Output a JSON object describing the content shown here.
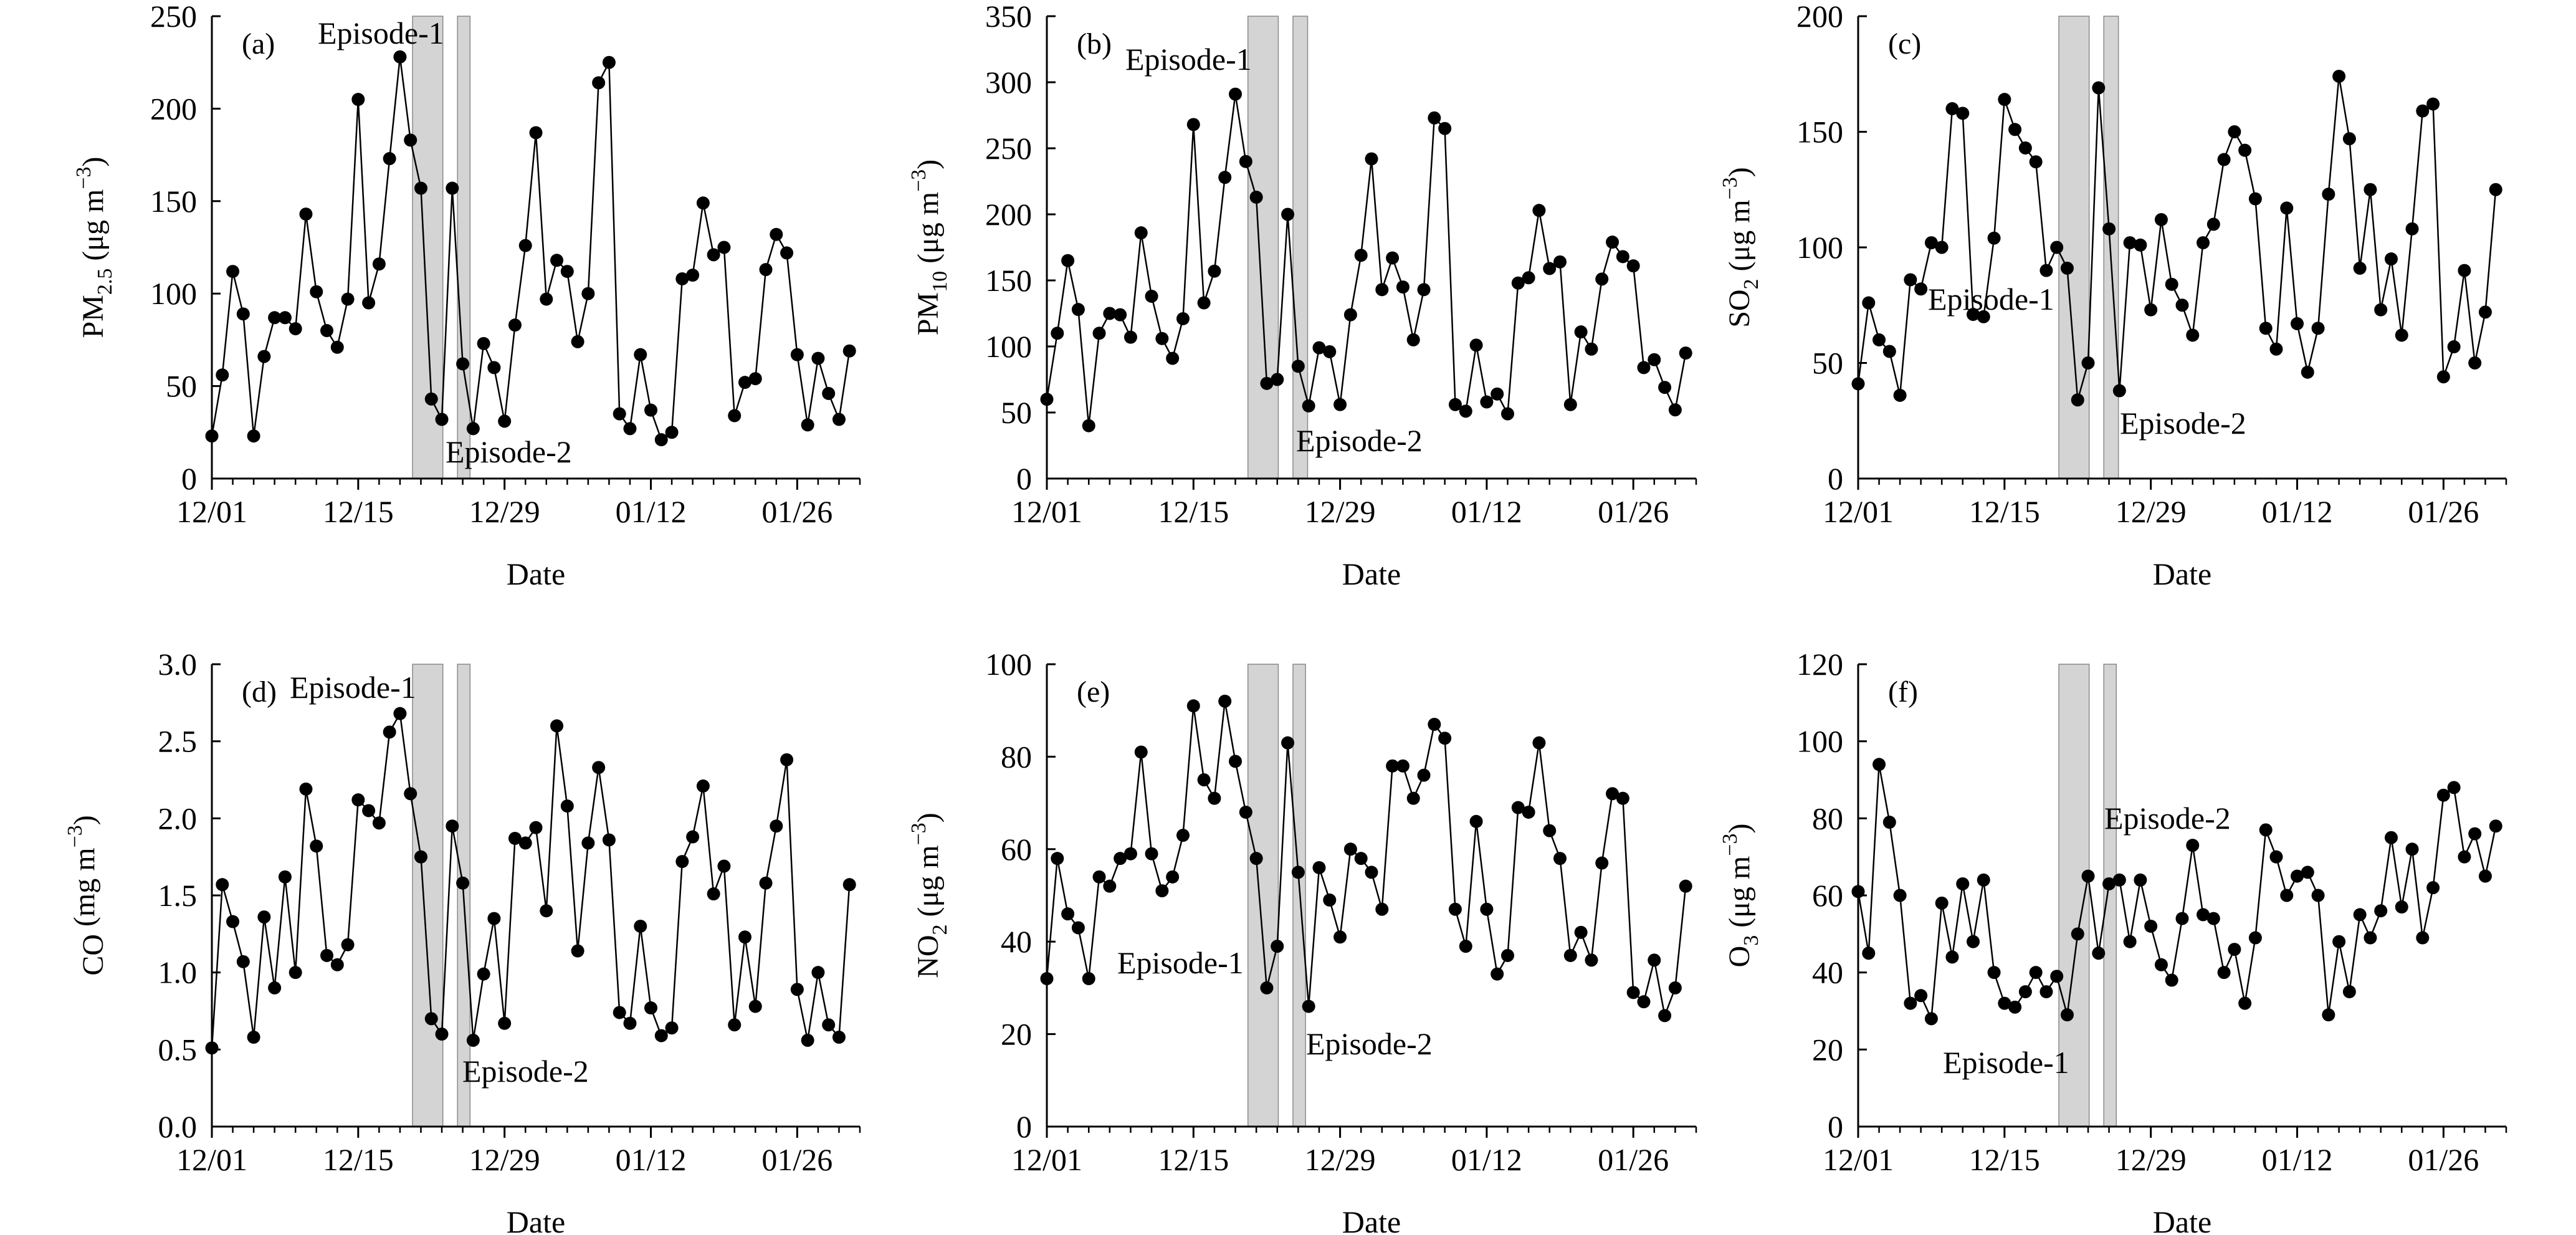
{
  "figure": {
    "shading_color": "#d4d4d4",
    "line_color": "#000000"
  },
  "chart_data": [
    {
      "type": "line",
      "panel": "(a)",
      "ylabel": {
        "main": "PM",
        "sub": "2.5",
        "unit": " (μg m",
        "sup": "−3",
        "close": ")"
      },
      "xlabel": "Date",
      "x_ticks": [
        "12/01",
        "12/15",
        "12/29",
        "01/12",
        "01/26"
      ],
      "ylim": [
        0,
        250
      ],
      "y_step": 50,
      "decimals": 0,
      "episodes": [
        {
          "label": "Episode-1",
          "x_range": [
            19.2,
            22.1
          ]
        },
        {
          "label": "Episode-2",
          "x_range": [
            23.5,
            24.7
          ]
        }
      ],
      "values": [
        23,
        56,
        112,
        89,
        23,
        66,
        87,
        87,
        81,
        143,
        101,
        80,
        71,
        97,
        205,
        95,
        116,
        173,
        228,
        183,
        157,
        43,
        32,
        157,
        62,
        27,
        73,
        60,
        31,
        83,
        126,
        187,
        97,
        118,
        112,
        74,
        100,
        214,
        225,
        35,
        27,
        67,
        37,
        21,
        25,
        108,
        110,
        149,
        121,
        125,
        34,
        52,
        54,
        113,
        132,
        122,
        67,
        29,
        65,
        46,
        32,
        69
      ]
    },
    {
      "type": "line",
      "panel": "(b)",
      "ylabel": {
        "main": "PM",
        "sub": "10",
        "unit": " (μg m",
        "sup": "−3",
        "close": ")"
      },
      "xlabel": "Date",
      "x_ticks": [
        "12/01",
        "12/15",
        "12/29",
        "01/12",
        "01/26"
      ],
      "ylim": [
        0,
        350
      ],
      "y_step": 50,
      "decimals": 0,
      "episodes": [
        {
          "label": "Episode-1",
          "x_range": [
            19.2,
            22.1
          ]
        },
        {
          "label": "Episode-2",
          "x_range": [
            23.5,
            24.9
          ]
        }
      ],
      "values": [
        60,
        110,
        165,
        128,
        40,
        110,
        125,
        124,
        107,
        186,
        138,
        106,
        91,
        121,
        268,
        133,
        157,
        228,
        291,
        240,
        213,
        72,
        75,
        200,
        85,
        55,
        99,
        96,
        56,
        124,
        169,
        242,
        143,
        167,
        145,
        105,
        143,
        273,
        265,
        56,
        51,
        101,
        58,
        64,
        49,
        148,
        152,
        203,
        159,
        164,
        56,
        111,
        98,
        151,
        179,
        168,
        161,
        84,
        90,
        69,
        52,
        95
      ]
    },
    {
      "type": "line",
      "panel": "(c)",
      "ylabel": {
        "main": "SO",
        "sub": "2",
        "unit": " (μg m",
        "sup": "−3",
        "close": ")"
      },
      "xlabel": "Date",
      "x_ticks": [
        "12/01",
        "12/15",
        "12/29",
        "01/12",
        "01/26"
      ],
      "ylim": [
        0,
        200
      ],
      "y_step": 50,
      "decimals": 0,
      "episodes": [
        {
          "label": "Episode-1",
          "x_range": [
            19.2,
            22.1
          ]
        },
        {
          "label": "Episode-2",
          "x_range": [
            23.5,
            24.9
          ]
        }
      ],
      "values": [
        41,
        76,
        60,
        55,
        36,
        86,
        82,
        102,
        100,
        160,
        158,
        71,
        70,
        104,
        164,
        151,
        143,
        137,
        90,
        100,
        91,
        34,
        50,
        169,
        108,
        38,
        102,
        101,
        73,
        112,
        84,
        75,
        62,
        102,
        110,
        138,
        150,
        142,
        121,
        65,
        56,
        117,
        67,
        46,
        65,
        123,
        174,
        147,
        91,
        125,
        73,
        95,
        62,
        108,
        159,
        162,
        44,
        57,
        90,
        50,
        72,
        125
      ]
    },
    {
      "type": "line",
      "panel": "(d)",
      "ylabel": {
        "main": "CO",
        "sub": "",
        "unit": " (mg m",
        "sup": "−3",
        "close": ")"
      },
      "xlabel": "Date",
      "x_ticks": [
        "12/01",
        "12/15",
        "12/29",
        "01/12",
        "01/26"
      ],
      "ylim": [
        0,
        3.0
      ],
      "y_step": 0.5,
      "decimals": 1,
      "episodes": [
        {
          "label": "Episode-1",
          "x_range": [
            19.2,
            22.1
          ]
        },
        {
          "label": "Episode-2",
          "x_range": [
            23.5,
            24.7
          ]
        }
      ],
      "values": [
        0.51,
        1.57,
        1.33,
        1.07,
        0.58,
        1.36,
        0.9,
        1.62,
        1.0,
        2.19,
        1.82,
        1.11,
        1.05,
        1.18,
        2.12,
        2.05,
        1.97,
        2.56,
        2.68,
        2.16,
        1.75,
        0.7,
        0.6,
        1.95,
        1.58,
        0.56,
        0.99,
        1.35,
        0.67,
        1.87,
        1.84,
        1.94,
        1.4,
        2.6,
        2.08,
        1.14,
        1.84,
        2.33,
        1.86,
        0.74,
        0.67,
        1.3,
        0.77,
        0.59,
        0.64,
        1.72,
        1.88,
        2.21,
        1.51,
        1.69,
        0.66,
        1.23,
        0.78,
        1.58,
        1.95,
        2.38,
        0.89,
        0.56,
        1.0,
        0.66,
        0.58,
        1.57
      ]
    },
    {
      "type": "line",
      "panel": "(e)",
      "ylabel": {
        "main": "NO",
        "sub": "2",
        "unit": " (μg m",
        "sup": "−3",
        "close": ")"
      },
      "xlabel": "Date",
      "x_ticks": [
        "12/01",
        "12/15",
        "12/29",
        "01/12",
        "01/26"
      ],
      "ylim": [
        0,
        100
      ],
      "y_step": 20,
      "decimals": 0,
      "episodes": [
        {
          "label": "Episode-1",
          "x_range": [
            19.2,
            22.1
          ]
        },
        {
          "label": "Episode-2",
          "x_range": [
            23.5,
            24.7
          ]
        }
      ],
      "values": [
        32,
        58,
        46,
        43,
        32,
        54,
        52,
        58,
        59,
        81,
        59,
        51,
        54,
        63,
        91,
        75,
        71,
        92,
        79,
        68,
        58,
        30,
        39,
        83,
        55,
        26,
        56,
        49,
        41,
        60,
        58,
        55,
        47,
        78,
        78,
        71,
        76,
        87,
        84,
        47,
        39,
        66,
        47,
        33,
        37,
        69,
        68,
        83,
        64,
        58,
        37,
        42,
        36,
        57,
        72,
        71,
        29,
        27,
        36,
        24,
        30,
        52
      ]
    },
    {
      "type": "line",
      "panel": "(f)",
      "ylabel": {
        "main": "O",
        "sub": "3",
        "unit": " (μg m",
        "sup": "−3",
        "close": ")"
      },
      "xlabel": "Date",
      "x_ticks": [
        "12/01",
        "12/15",
        "12/29",
        "01/12",
        "01/26"
      ],
      "ylim": [
        0,
        120
      ],
      "y_step": 20,
      "decimals": 0,
      "episodes": [
        {
          "label": "Episode-1",
          "x_range": [
            19.2,
            22.1
          ]
        },
        {
          "label": "Episode-2",
          "x_range": [
            23.5,
            24.7
          ]
        }
      ],
      "values": [
        61,
        45,
        94,
        79,
        60,
        32,
        34,
        28,
        58,
        44,
        63,
        48,
        64,
        40,
        32,
        31,
        35,
        40,
        35,
        39,
        29,
        50,
        65,
        45,
        63,
        64,
        48,
        64,
        52,
        42,
        38,
        54,
        73,
        55,
        54,
        40,
        46,
        32,
        49,
        77,
        70,
        60,
        65,
        66,
        60,
        29,
        48,
        35,
        55,
        49,
        56,
        75,
        57,
        72,
        49,
        62,
        86,
        88,
        70,
        76,
        65,
        78
      ]
    }
  ]
}
